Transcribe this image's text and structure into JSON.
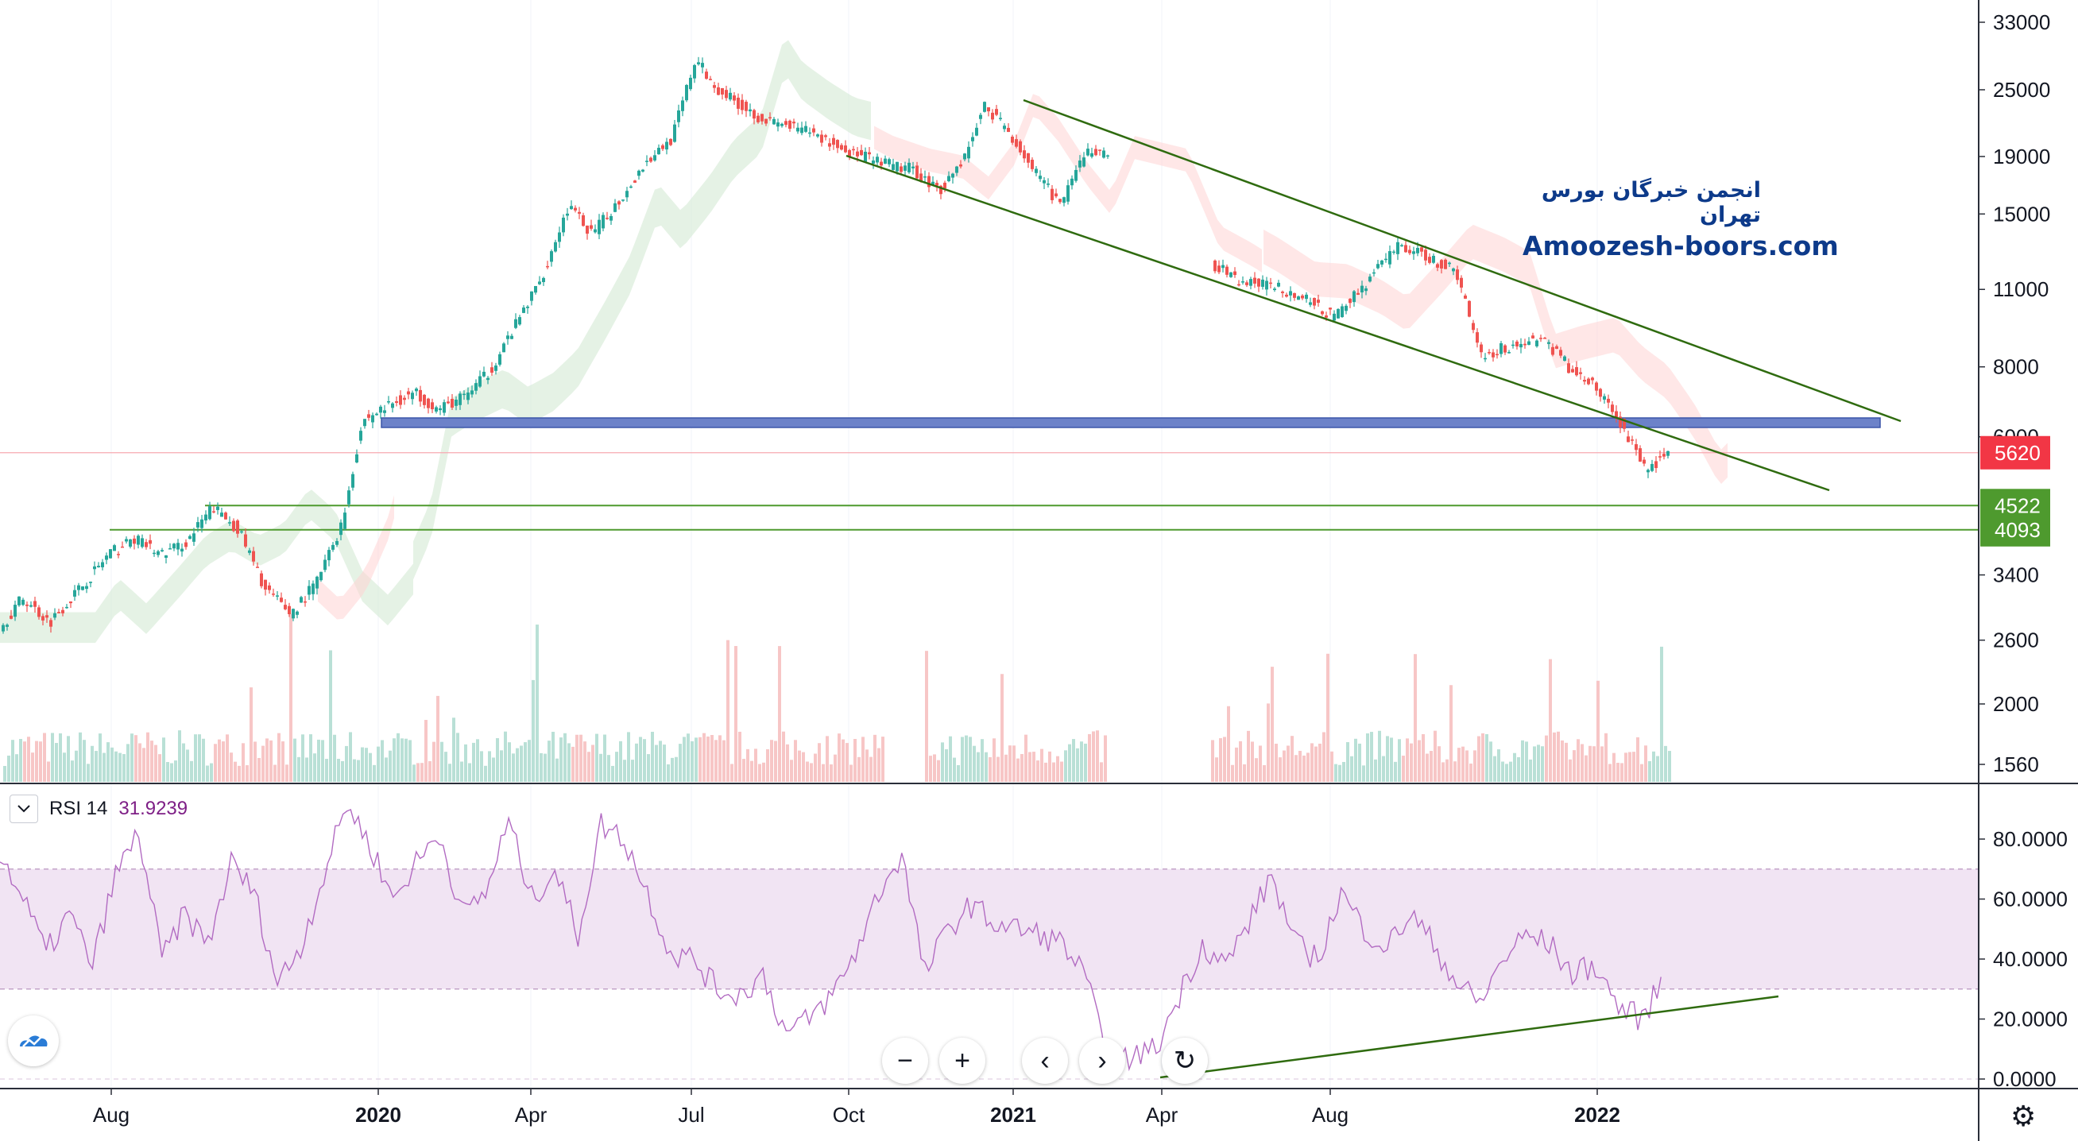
{
  "chart_data": {
    "type": "candlestick",
    "price_axis": {
      "scale": "log",
      "ticks": [
        "33000",
        "25000",
        "19000",
        "15000",
        "11000",
        "8000",
        "6000",
        "3400",
        "2600",
        "2000",
        "1560"
      ],
      "tick_values": [
        33000,
        25000,
        19000,
        15000,
        11000,
        8000,
        6000,
        3400,
        2600,
        2000,
        1560
      ]
    },
    "price_tags": [
      {
        "label": "5620",
        "value": 5620,
        "color": "#f23645"
      },
      {
        "label": "4522",
        "value": 4522,
        "color": "#4e9a2e"
      },
      {
        "label": "4093",
        "value": 4093,
        "color": "#4e9a2e"
      }
    ],
    "time_axis": {
      "ticks": [
        {
          "label": "Aug",
          "bold": false
        },
        {
          "label": "2020",
          "bold": true
        },
        {
          "label": "Apr",
          "bold": false
        },
        {
          "label": "Jul",
          "bold": false
        },
        {
          "label": "Oct",
          "bold": false
        },
        {
          "label": "2021",
          "bold": true
        },
        {
          "label": "Apr",
          "bold": false
        },
        {
          "label": "Aug",
          "bold": false
        },
        {
          "label": "2022",
          "bold": true
        }
      ]
    },
    "price_path": [
      [
        "2019-06-01",
        2700
      ],
      [
        "2019-06-15",
        3100
      ],
      [
        "2019-07-01",
        2800
      ],
      [
        "2019-07-20",
        3250
      ],
      [
        "2019-08-05",
        3700
      ],
      [
        "2019-08-20",
        3950
      ],
      [
        "2019-09-05",
        3700
      ],
      [
        "2019-09-20",
        3900
      ],
      [
        "2019-10-05",
        4500
      ],
      [
        "2019-10-20",
        4100
      ],
      [
        "2019-11-05",
        3200
      ],
      [
        "2019-11-20",
        2900
      ],
      [
        "2019-12-05",
        3300
      ],
      [
        "2019-12-20",
        4200
      ],
      [
        "2020-01-01",
        6400
      ],
      [
        "2020-01-15",
        6800
      ],
      [
        "2020-02-01",
        7200
      ],
      [
        "2020-02-15",
        6700
      ],
      [
        "2020-03-01",
        7100
      ],
      [
        "2020-03-15",
        7800
      ],
      [
        "2020-04-01",
        9600
      ],
      [
        "2020-04-15",
        11500
      ],
      [
        "2020-05-01",
        15500
      ],
      [
        "2020-05-15",
        13800
      ],
      [
        "2020-06-01",
        16000
      ],
      [
        "2020-06-15",
        18500
      ],
      [
        "2020-07-01",
        20500
      ],
      [
        "2020-07-15",
        28500
      ],
      [
        "2020-07-25",
        25500
      ],
      [
        "2020-08-10",
        23500
      ],
      [
        "2020-08-25",
        22000
      ],
      [
        "2020-09-20",
        21000
      ],
      [
        "2020-10-10",
        19500
      ],
      [
        "2020-11-01",
        18500
      ],
      [
        "2020-11-20",
        18000
      ],
      [
        "2020-12-05",
        16500
      ],
      [
        "2020-12-20",
        19000
      ],
      [
        "2021-01-01",
        23500
      ],
      [
        "2021-01-15",
        21000
      ],
      [
        "2021-02-01",
        17500
      ],
      [
        "2021-02-15",
        15500
      ],
      [
        "2021-03-01",
        19500
      ],
      [
        "2021-04-01",
        18500
      ],
      [
        "2021-04-20",
        13500
      ],
      [
        "2021-05-10",
        12500
      ],
      [
        "2021-06-01",
        11300
      ],
      [
        "2021-06-20",
        11200
      ],
      [
        "2021-07-10",
        10500
      ],
      [
        "2021-07-25",
        9800
      ],
      [
        "2021-08-15",
        11500
      ],
      [
        "2021-09-01",
        13200
      ],
      [
        "2021-09-20",
        12500
      ],
      [
        "2021-10-05",
        11800
      ],
      [
        "2021-10-20",
        8400
      ],
      [
        "2021-11-05",
        8700
      ],
      [
        "2021-11-25",
        9000
      ],
      [
        "2021-12-10",
        8000
      ],
      [
        "2021-12-25",
        7400
      ],
      [
        "2022-01-10",
        6300
      ],
      [
        "2022-01-25",
        5200
      ],
      [
        "2022-02-05",
        5620
      ]
    ],
    "rsi": {
      "name": "RSI 14",
      "value_label": "31.9239",
      "ticks": [
        "80.0000",
        "60.0000",
        "40.0000",
        "20.0000",
        "0.0000"
      ],
      "tick_values": [
        80,
        60,
        40,
        20,
        0
      ],
      "band": [
        30,
        70
      ],
      "values": [
        75,
        60,
        42,
        55,
        38,
        68,
        82,
        40,
        55,
        45,
        72,
        62,
        32,
        44,
        68,
        92,
        78,
        60,
        72,
        82,
        55,
        62,
        86,
        60,
        70,
        48,
        85,
        80,
        62,
        42,
        40,
        30,
        28,
        35,
        15,
        20,
        28,
        42,
        62,
        75,
        35,
        50,
        58,
        52,
        50,
        48,
        45,
        33,
        2,
        8,
        10,
        28,
        45,
        38,
        52,
        68,
        45,
        40,
        62,
        50,
        44,
        55,
        45,
        32,
        25,
        40,
        48,
        45,
        35,
        38,
        24,
        20,
        34
      ]
    },
    "grid": true,
    "legend": "top-left"
  },
  "rsi_header": {
    "name": "RSI 14",
    "value": "31.9239"
  },
  "watermark": {
    "fa": "انجمن خبرگان بورس تهران",
    "en": "Amoozesh-boors.com"
  },
  "nav": {
    "zoom_out": "−",
    "zoom_in": "+",
    "prev": "‹",
    "next": "›",
    "reset": "↻"
  },
  "colors": {
    "up": "#26a69a",
    "down": "#ef5350",
    "channel": "#2f6b0f",
    "support_zone": "#6c82c9",
    "rsi_line": "#b26bc2",
    "rsi_band": "#f1e4f3"
  }
}
